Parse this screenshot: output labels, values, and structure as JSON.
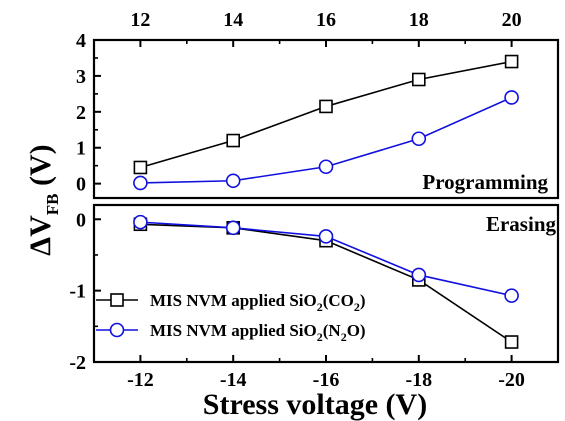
{
  "chart_data": [
    {
      "type": "line",
      "panel": "top",
      "label": "Programming",
      "x_axis_position": "top",
      "x_tick_labels": [
        "12",
        "14",
        "16",
        "18",
        "20"
      ],
      "xlim": [
        11,
        21
      ],
      "ylim": [
        -0.4,
        4
      ],
      "y_tick_labels": [
        "0",
        "1",
        "2",
        "3",
        "4"
      ],
      "x": [
        12,
        14,
        16,
        18,
        20
      ],
      "series": [
        {
          "name": "MIS NVM applied SiO2(CO2)",
          "marker": "square",
          "color": "#000000",
          "values": [
            0.45,
            1.2,
            2.15,
            2.9,
            3.4
          ]
        },
        {
          "name": "MIS NVM applied SiO2(N2O)",
          "marker": "circle",
          "color": "#1010e0",
          "values": [
            0.02,
            0.08,
            0.47,
            1.25,
            2.4
          ]
        }
      ]
    },
    {
      "type": "line",
      "panel": "bottom",
      "label": "Erasing",
      "x_axis_position": "bottom",
      "x_tick_labels": [
        "-12",
        "-14",
        "-16",
        "-18",
        "-20"
      ],
      "xlim": [
        -11,
        -21
      ],
      "ylim": [
        -2,
        0.2
      ],
      "y_tick_labels": [
        "0",
        "-1",
        "-2"
      ],
      "x": [
        -12,
        -14,
        -16,
        -18,
        -20
      ],
      "xlabel": "Stress voltage (V)",
      "series": [
        {
          "name": "MIS NVM applied SiO2(CO2)",
          "marker": "square",
          "color": "#000000",
          "values": [
            -0.07,
            -0.12,
            -0.3,
            -0.85,
            -1.72
          ]
        },
        {
          "name": "MIS NVM applied SiO2(N2O)",
          "marker": "circle",
          "color": "#1010e0",
          "values": [
            -0.04,
            -0.12,
            -0.24,
            -0.78,
            -1.07
          ]
        }
      ]
    }
  ],
  "ylabel": {
    "main": "ΔV",
    "subscript": "FB",
    "unit": " (V)"
  },
  "legend": {
    "placement": "bottom-left",
    "entries": [
      {
        "text": "MIS NVM applied SiO",
        "sub1": "2",
        "mid": "(CO",
        "sub2": "2",
        "end": ")"
      },
      {
        "text": "MIS NVM applied SiO",
        "sub1": "2",
        "mid": "(N",
        "sub2": "2",
        "end": "O)"
      }
    ]
  }
}
